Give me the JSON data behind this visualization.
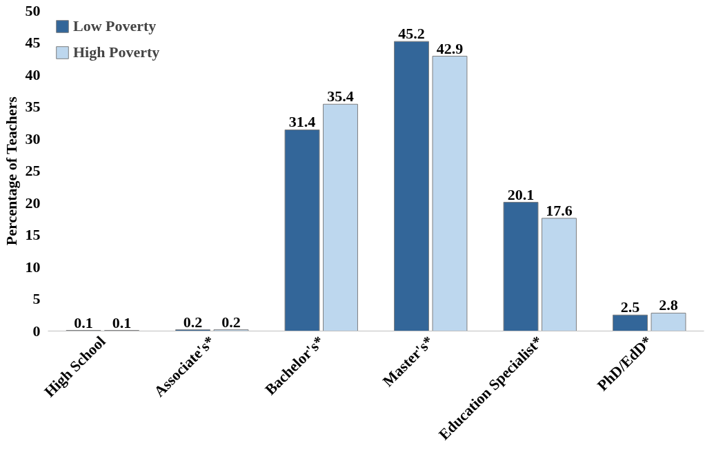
{
  "chart_data": {
    "type": "bar",
    "ylabel": "Percentage of Teachers",
    "categories": [
      "High School",
      "Associate's*",
      "Bachelor's*",
      "Master's*",
      "Education Specialist*",
      "PhD/EdD*"
    ],
    "series": [
      {
        "name": "Low Poverty",
        "color": "#336699",
        "values": [
          0.1,
          0.2,
          31.4,
          45.2,
          20.1,
          2.5
        ]
      },
      {
        "name": "High Poverty",
        "color": "#bdd7ee",
        "values": [
          0.1,
          0.2,
          35.4,
          42.9,
          17.6,
          2.8
        ]
      }
    ],
    "ylim": [
      0,
      50
    ],
    "yticks": [
      0,
      5,
      10,
      15,
      20,
      25,
      30,
      35,
      40,
      45,
      50
    ],
    "grid": false,
    "legend": "top left",
    "data_labels": true
  }
}
